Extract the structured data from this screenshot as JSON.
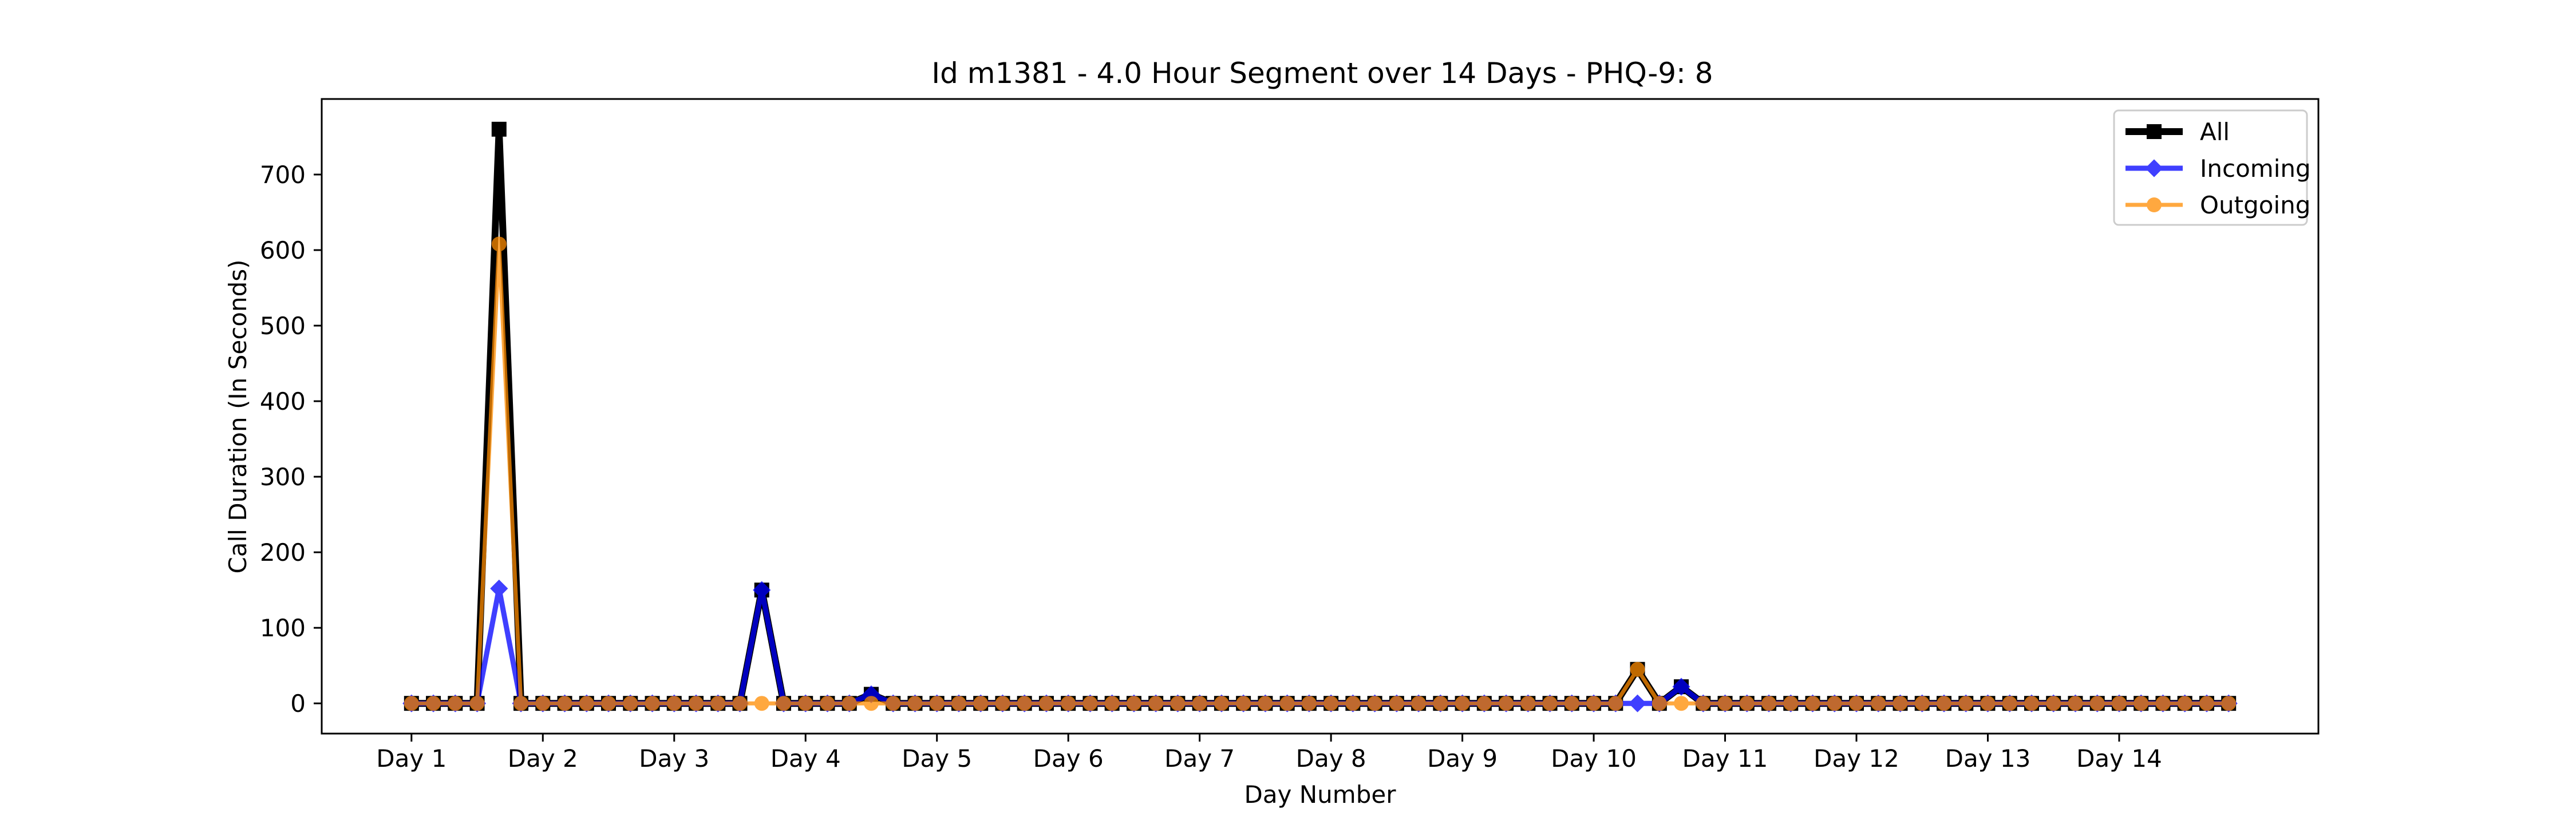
{
  "chart_data": {
    "type": "line",
    "title": "Id m1381 - 4.0 Hour Segment over 14 Days - PHQ-9: 8",
    "xlabel": "Day Number",
    "ylabel": "Call Duration (In Seconds)",
    "x_tick_labels": [
      "Day 1",
      "Day 2",
      "Day 3",
      "Day 4",
      "Day 5",
      "Day 6",
      "Day 7",
      "Day 8",
      "Day 9",
      "Day 10",
      "Day 11",
      "Day 12",
      "Day 13",
      "Day 14"
    ],
    "y_ticks": [
      0,
      100,
      200,
      300,
      400,
      500,
      600,
      700
    ],
    "ylim": [
      -40,
      800
    ],
    "xlim": [
      -4.1,
      87.1
    ],
    "segments_per_day": 6,
    "grid": false,
    "legend_position": "top-right",
    "series": [
      {
        "name": "All",
        "color": "#000000",
        "marker": "square",
        "values": [
          0,
          0,
          0,
          0,
          760,
          0,
          0,
          0,
          0,
          0,
          0,
          0,
          0,
          0,
          0,
          0,
          150,
          0,
          0,
          0,
          0,
          12,
          0,
          0,
          0,
          0,
          0,
          0,
          0,
          0,
          0,
          0,
          0,
          0,
          0,
          0,
          0,
          0,
          0,
          0,
          0,
          0,
          0,
          0,
          0,
          0,
          0,
          0,
          0,
          0,
          0,
          0,
          0,
          0,
          0,
          0,
          0,
          0,
          0,
          0,
          0,
          0,
          0,
          0,
          0,
          0,
          0,
          0,
          0,
          0,
          0,
          0,
          0,
          0,
          0,
          0,
          0,
          0,
          0,
          0,
          0,
          0,
          0,
          0
        ]
      },
      {
        "name": "Incoming",
        "color": "#0000ff",
        "marker": "diamond",
        "values": [
          0,
          0,
          0,
          0,
          152,
          0,
          0,
          0,
          0,
          0,
          0,
          0,
          0,
          0,
          0,
          0,
          150,
          0,
          0,
          0,
          0,
          12,
          0,
          0,
          0,
          0,
          0,
          0,
          0,
          0,
          0,
          0,
          0,
          0,
          0,
          0,
          0,
          0,
          0,
          0,
          0,
          0,
          0,
          0,
          0,
          0,
          0,
          0,
          0,
          0,
          0,
          0,
          0,
          0,
          0,
          0,
          0,
          0,
          0,
          0,
          0,
          0,
          0,
          0,
          0,
          0,
          0,
          0,
          0,
          0,
          0,
          0,
          0,
          0,
          0,
          0,
          0,
          0,
          0,
          0,
          0,
          0,
          0,
          0
        ]
      },
      {
        "name": "Outgoing",
        "color": "#ff8c00",
        "marker": "circle",
        "values": [
          0,
          0,
          0,
          0,
          608,
          0,
          0,
          0,
          0,
          0,
          0,
          0,
          0,
          0,
          0,
          0,
          0,
          0,
          0,
          0,
          0,
          0,
          0,
          0,
          0,
          0,
          0,
          0,
          0,
          0,
          0,
          0,
          0,
          0,
          0,
          0,
          0,
          0,
          0,
          0,
          0,
          0,
          0,
          0,
          0,
          0,
          0,
          0,
          0,
          0,
          0,
          0,
          0,
          0,
          0,
          0,
          0,
          0,
          0,
          0,
          0,
          0,
          0,
          0,
          0,
          0,
          0,
          0,
          0,
          0,
          0,
          0,
          0,
          0,
          0,
          0,
          0,
          0,
          0,
          0,
          0,
          0,
          0,
          0
        ]
      }
    ],
    "extra_points": {
      "All": [
        [
          56,
          45
        ],
        [
          58,
          22
        ]
      ],
      "Incoming": [
        [
          56,
          0
        ],
        [
          58,
          22
        ]
      ],
      "Outgoing": [
        [
          56,
          45
        ],
        [
          58,
          0
        ]
      ]
    }
  }
}
